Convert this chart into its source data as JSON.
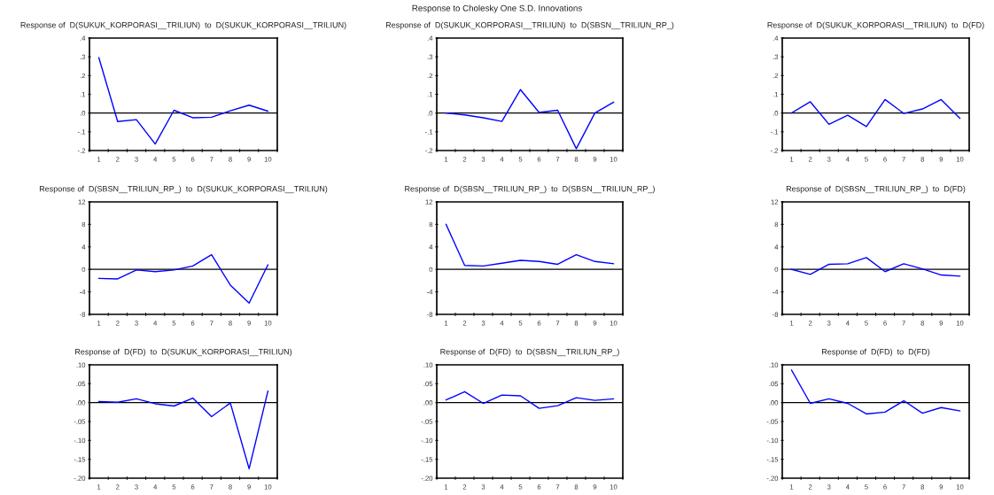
{
  "chart_data": [
    {
      "type": "line",
      "title": "Response of  D(SUKUK_KORPORASI__TRILIUN)  to  D(SUKUK_KORPORASI__TRILIUN)",
      "annotations": [
        "Response to Cholesky One S.D. Innovations"
      ],
      "categories": [
        "1",
        "2",
        "3",
        "4",
        "5",
        "6",
        "7",
        "8",
        "9",
        "10"
      ],
      "series": [
        {
          "color": "#0000ff",
          "values": [
            0.295,
            -0.045,
            -0.035,
            -0.165,
            0.015,
            -0.025,
            -0.022,
            0.012,
            0.042,
            0.01
          ]
        }
      ],
      "ylim": [
        -0.2,
        0.4
      ],
      "yticks": [
        {
          "value": -0.2,
          "label": "-.2"
        },
        {
          "value": -0.1,
          "label": "-.1"
        },
        {
          "value": 0,
          "label": ".0"
        },
        {
          "value": 0.1,
          "label": ".1"
        },
        {
          "value": 0.2,
          "label": ".2"
        },
        {
          "value": 0.3,
          "label": ".3"
        },
        {
          "value": 0.4,
          "label": ".4"
        }
      ],
      "ref_lines": [
        {
          "axis": "y",
          "value": 0,
          "color": "#000000"
        }
      ]
    },
    {
      "type": "line",
      "title": "Response of  D(SUKUK_KORPORASI__TRILIUN)  to  D(SBSN__TRILIUN_RP_)",
      "categories": [
        "1",
        "2",
        "3",
        "4",
        "5",
        "6",
        "7",
        "8",
        "9",
        "10"
      ],
      "series": [
        {
          "color": "#0000ff",
          "values": [
            0.0,
            -0.01,
            -0.025,
            -0.045,
            0.125,
            0.003,
            0.015,
            -0.19,
            0.0,
            0.058
          ]
        }
      ],
      "ylim": [
        -0.2,
        0.4
      ],
      "yticks": [
        {
          "value": -0.2,
          "label": "-.2"
        },
        {
          "value": -0.1,
          "label": "-.1"
        },
        {
          "value": 0,
          "label": ".0"
        },
        {
          "value": 0.1,
          "label": ".1"
        },
        {
          "value": 0.2,
          "label": ".2"
        },
        {
          "value": 0.3,
          "label": ".3"
        },
        {
          "value": 0.4,
          "label": ".4"
        }
      ],
      "ref_lines": [
        {
          "axis": "y",
          "value": 0,
          "color": "#000000"
        }
      ]
    },
    {
      "type": "line",
      "title": "Response of  D(SUKUK_KORPORASI__TRILIUN)  to  D(FD)",
      "categories": [
        "1",
        "2",
        "3",
        "4",
        "5",
        "6",
        "7",
        "8",
        "9",
        "10"
      ],
      "series": [
        {
          "color": "#0000ff",
          "values": [
            0.0,
            0.06,
            -0.06,
            -0.012,
            -0.072,
            0.072,
            -0.002,
            0.022,
            0.072,
            -0.028
          ]
        }
      ],
      "ylim": [
        -0.2,
        0.4
      ],
      "yticks": [
        {
          "value": -0.2,
          "label": "-.2"
        },
        {
          "value": -0.1,
          "label": "-.1"
        },
        {
          "value": 0,
          "label": ".0"
        },
        {
          "value": 0.1,
          "label": ".1"
        },
        {
          "value": 0.2,
          "label": ".2"
        },
        {
          "value": 0.3,
          "label": ".3"
        },
        {
          "value": 0.4,
          "label": ".4"
        }
      ],
      "ref_lines": [
        {
          "axis": "y",
          "value": 0,
          "color": "#000000"
        }
      ]
    },
    {
      "type": "line",
      "title": "Response of  D(SBSN__TRILIUN_RP_)  to  D(SUKUK_KORPORASI__TRILIUN)",
      "categories": [
        "1",
        "2",
        "3",
        "4",
        "5",
        "6",
        "7",
        "8",
        "9",
        "10"
      ],
      "series": [
        {
          "color": "#0000ff",
          "values": [
            -1.6,
            -1.7,
            -0.1,
            -0.4,
            -0.1,
            0.6,
            2.6,
            -2.8,
            -6.0,
            0.8
          ]
        }
      ],
      "ylim": [
        -8,
        12
      ],
      "yticks": [
        -8,
        -4,
        0,
        4,
        8,
        12
      ],
      "ref_lines": [
        {
          "axis": "y",
          "value": 0,
          "color": "#000000"
        }
      ]
    },
    {
      "type": "line",
      "title": "Response of  D(SBSN__TRILIUN_RP_)  to  D(SBSN__TRILIUN_RP_)",
      "categories": [
        "1",
        "2",
        "3",
        "4",
        "5",
        "6",
        "7",
        "8",
        "9",
        "10"
      ],
      "series": [
        {
          "color": "#0000ff",
          "values": [
            8.0,
            0.7,
            0.6,
            1.1,
            1.6,
            1.4,
            0.9,
            2.6,
            1.4,
            1.0
          ]
        }
      ],
      "ylim": [
        -8,
        12
      ],
      "yticks": [
        -8,
        -4,
        0,
        4,
        8,
        12
      ],
      "ref_lines": [
        {
          "axis": "y",
          "value": 0,
          "color": "#000000"
        }
      ]
    },
    {
      "type": "line",
      "title": "Response of  D(SBSN__TRILIUN_RP_)  to  D(FD)",
      "categories": [
        "1",
        "2",
        "3",
        "4",
        "5",
        "6",
        "7",
        "8",
        "9",
        "10"
      ],
      "series": [
        {
          "color": "#0000ff",
          "values": [
            0.0,
            -0.9,
            0.9,
            1.0,
            2.1,
            -0.4,
            1.0,
            0.1,
            -1.0,
            -1.2
          ]
        }
      ],
      "ylim": [
        -8,
        12
      ],
      "yticks": [
        -8,
        -4,
        0,
        4,
        8,
        12
      ],
      "ref_lines": [
        {
          "axis": "y",
          "value": 0,
          "color": "#000000"
        }
      ]
    },
    {
      "type": "line",
      "title": "Response of  D(FD)  to  D(SUKUK_KORPORASI__TRILIUN)",
      "categories": [
        "1",
        "2",
        "3",
        "4",
        "5",
        "6",
        "7",
        "8",
        "9",
        "10"
      ],
      "series": [
        {
          "color": "#0000ff",
          "values": [
            0.003,
            0.001,
            0.01,
            -0.003,
            -0.009,
            0.012,
            -0.037,
            -0.001,
            -0.175,
            0.03
          ]
        }
      ],
      "ylim": [
        -0.2,
        0.1
      ],
      "yticks": [
        {
          "value": -0.2,
          "label": "-.20"
        },
        {
          "value": -0.15,
          "label": "-.15"
        },
        {
          "value": -0.1,
          "label": "-.10"
        },
        {
          "value": -0.05,
          "label": "-.05"
        },
        {
          "value": 0,
          "label": ".00"
        },
        {
          "value": 0.05,
          "label": ".05"
        },
        {
          "value": 0.1,
          "label": ".10"
        }
      ],
      "ref_lines": [
        {
          "axis": "y",
          "value": 0,
          "color": "#000000"
        }
      ]
    },
    {
      "type": "line",
      "title": "Response of  D(FD)  to  D(SBSN__TRILIUN_RP_)",
      "categories": [
        "1",
        "2",
        "3",
        "4",
        "5",
        "6",
        "7",
        "8",
        "9",
        "10"
      ],
      "series": [
        {
          "color": "#0000ff",
          "values": [
            0.007,
            0.029,
            -0.002,
            0.02,
            0.018,
            -0.015,
            -0.008,
            0.013,
            0.006,
            0.01
          ]
        }
      ],
      "ylim": [
        -0.2,
        0.1
      ],
      "yticks": [
        {
          "value": -0.2,
          "label": "-.20"
        },
        {
          "value": -0.15,
          "label": "-.15"
        },
        {
          "value": -0.1,
          "label": "-.10"
        },
        {
          "value": -0.05,
          "label": "-.05"
        },
        {
          "value": 0,
          "label": ".00"
        },
        {
          "value": 0.05,
          "label": ".05"
        },
        {
          "value": 0.1,
          "label": ".10"
        }
      ],
      "ref_lines": [
        {
          "axis": "y",
          "value": 0,
          "color": "#000000"
        }
      ]
    },
    {
      "type": "line",
      "title": "Response of  D(FD)  to  D(FD)",
      "categories": [
        "1",
        "2",
        "3",
        "4",
        "5",
        "6",
        "7",
        "8",
        "9",
        "10"
      ],
      "series": [
        {
          "color": "#0000ff",
          "values": [
            0.086,
            -0.002,
            0.01,
            -0.002,
            -0.03,
            -0.025,
            0.005,
            -0.028,
            -0.013,
            -0.022
          ]
        }
      ],
      "ylim": [
        -0.2,
        0.1
      ],
      "yticks": [
        {
          "value": -0.2,
          "label": "-.20"
        },
        {
          "value": -0.15,
          "label": "-.15"
        },
        {
          "value": -0.1,
          "label": "-.10"
        },
        {
          "value": -0.05,
          "label": "-.05"
        },
        {
          "value": 0,
          "label": ".00"
        },
        {
          "value": 0.05,
          "label": ".05"
        },
        {
          "value": 0.1,
          "label": ".10"
        }
      ],
      "ref_lines": [
        {
          "axis": "y",
          "value": 0,
          "color": "#000000"
        }
      ]
    }
  ]
}
